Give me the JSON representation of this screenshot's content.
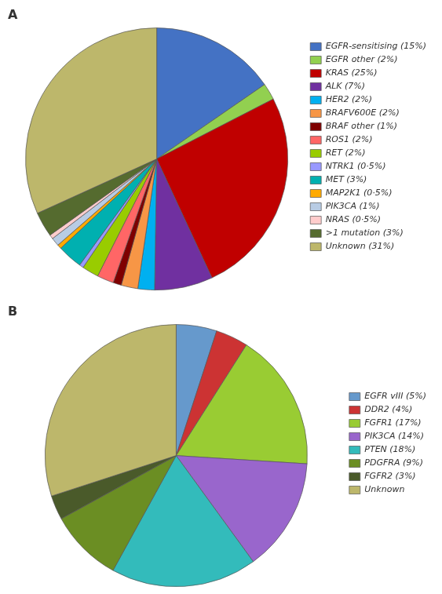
{
  "chart_data": [
    {
      "type": "pie",
      "title": "A",
      "categories": [
        "EGFR-sensitising (15%)",
        "EGFR other (2%)",
        "KRAS (25%)",
        "ALK (7%)",
        "HER2 (2%)",
        "BRAFV600E (2%)",
        "BRAF other (1%)",
        "ROS1 (2%)",
        "RET (2%)",
        "NTRK1 (0·5%)",
        "MET (3%)",
        "MAP2K1 (0·5%)",
        "PIK3CA (1%)",
        "NRAS (0·5%)",
        ">1 mutation (3%)",
        "Unknown (31%)"
      ],
      "values": [
        15,
        2,
        25,
        7,
        2,
        2,
        1,
        2,
        2,
        0.5,
        3,
        0.5,
        1,
        0.5,
        3,
        31
      ],
      "colors": [
        "#4472c4",
        "#92d050",
        "#c00000",
        "#7030a0",
        "#00b0f0",
        "#f79646",
        "#7f0000",
        "#ff6666",
        "#99cc00",
        "#9999ff",
        "#00b0b0",
        "#ffaa00",
        "#b8cce4",
        "#ffcccc",
        "#556b2f",
        "#bdb76b"
      ],
      "legend": "right"
    },
    {
      "type": "pie",
      "title": "B",
      "categories": [
        "EGFR vIII (5%)",
        "DDR2 (4%)",
        "FGFR1 (17%)",
        "PIK3CA (14%)",
        "PTEN (18%)",
        "PDGFRA (9%)",
        "FGFR2 (3%)",
        "Unknown"
      ],
      "values": [
        5,
        4,
        17,
        14,
        18,
        9,
        3,
        30
      ],
      "colors": [
        "#6699cc",
        "#cc3333",
        "#99cc33",
        "#9966cc",
        "#33bbbb",
        "#6b8e23",
        "#4a5a2a",
        "#bdb76b"
      ],
      "legend": "right"
    }
  ]
}
